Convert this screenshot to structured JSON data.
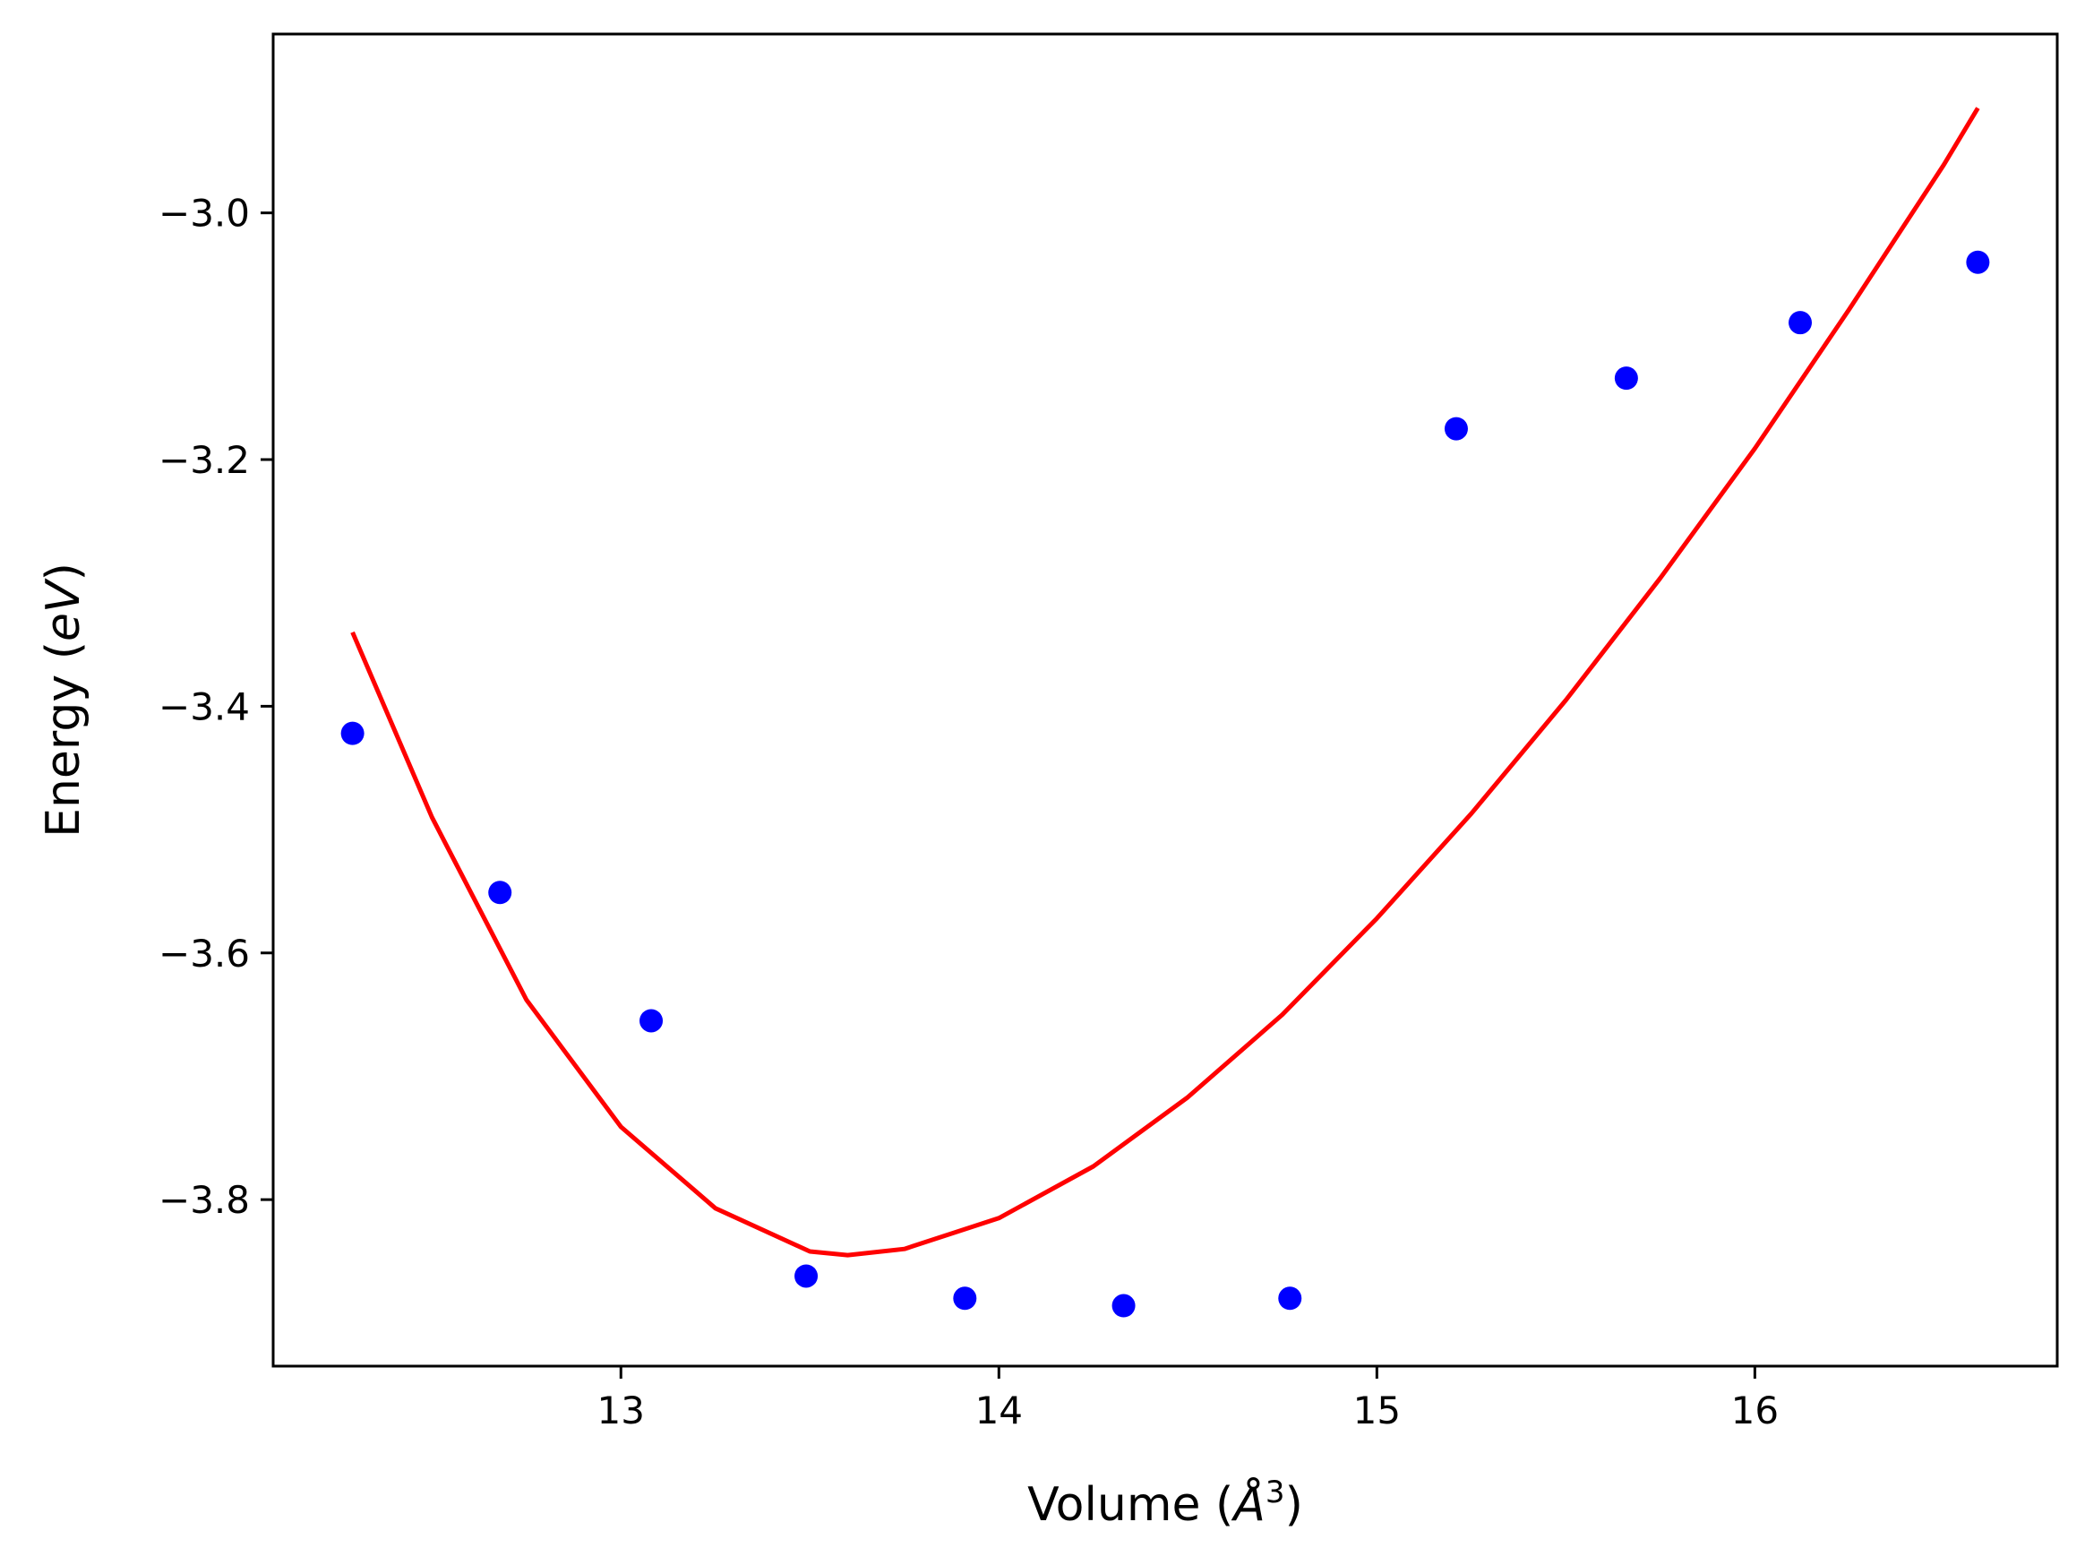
{
  "chart_data": {
    "type": "scatter",
    "title": "",
    "xlabel": {
      "pre": "Volume (",
      "italic": "Å",
      "sup": "3",
      "post": ")"
    },
    "ylabel": {
      "pre": "Energy (",
      "italic": "eV",
      "post": ")"
    },
    "xlim": [
      12.08,
      16.8
    ],
    "ylim": [
      -3.935,
      -2.855
    ],
    "xticks": [
      13,
      14,
      15,
      16
    ],
    "xtick_labels": [
      "13",
      "14",
      "15",
      "16"
    ],
    "yticks": [
      -3.0,
      -3.2,
      -3.4,
      -3.6,
      -3.8
    ],
    "ytick_labels": [
      "−3.0",
      "−3.2",
      "−3.4",
      "−3.6",
      "−3.8"
    ],
    "grid": false,
    "series": [
      {
        "kind": "points",
        "color": "#0000ff",
        "x": [
          12.29,
          12.68,
          13.08,
          13.49,
          13.91,
          14.33,
          14.77,
          15.21,
          15.66,
          16.12,
          16.59
        ],
        "y": [
          -3.422,
          -3.551,
          -3.655,
          -3.862,
          -3.88,
          -3.886,
          -3.88,
          -3.175,
          -3.134,
          -3.089,
          -3.04
        ]
      },
      {
        "kind": "line",
        "color": "#ff0000",
        "x": [
          12.29,
          12.5,
          12.75,
          13.0,
          13.25,
          13.5,
          13.6,
          13.75,
          14.0,
          14.25,
          14.5,
          14.75,
          15.0,
          15.25,
          15.5,
          15.75,
          16.0,
          16.25,
          16.5,
          16.59
        ],
        "y": [
          -3.34,
          -3.49,
          -3.638,
          -3.741,
          -3.807,
          -3.842,
          -3.845,
          -3.84,
          -3.815,
          -3.773,
          -3.717,
          -3.65,
          -3.572,
          -3.487,
          -3.395,
          -3.296,
          -3.191,
          -3.078,
          -2.961,
          -2.915
        ]
      }
    ]
  }
}
